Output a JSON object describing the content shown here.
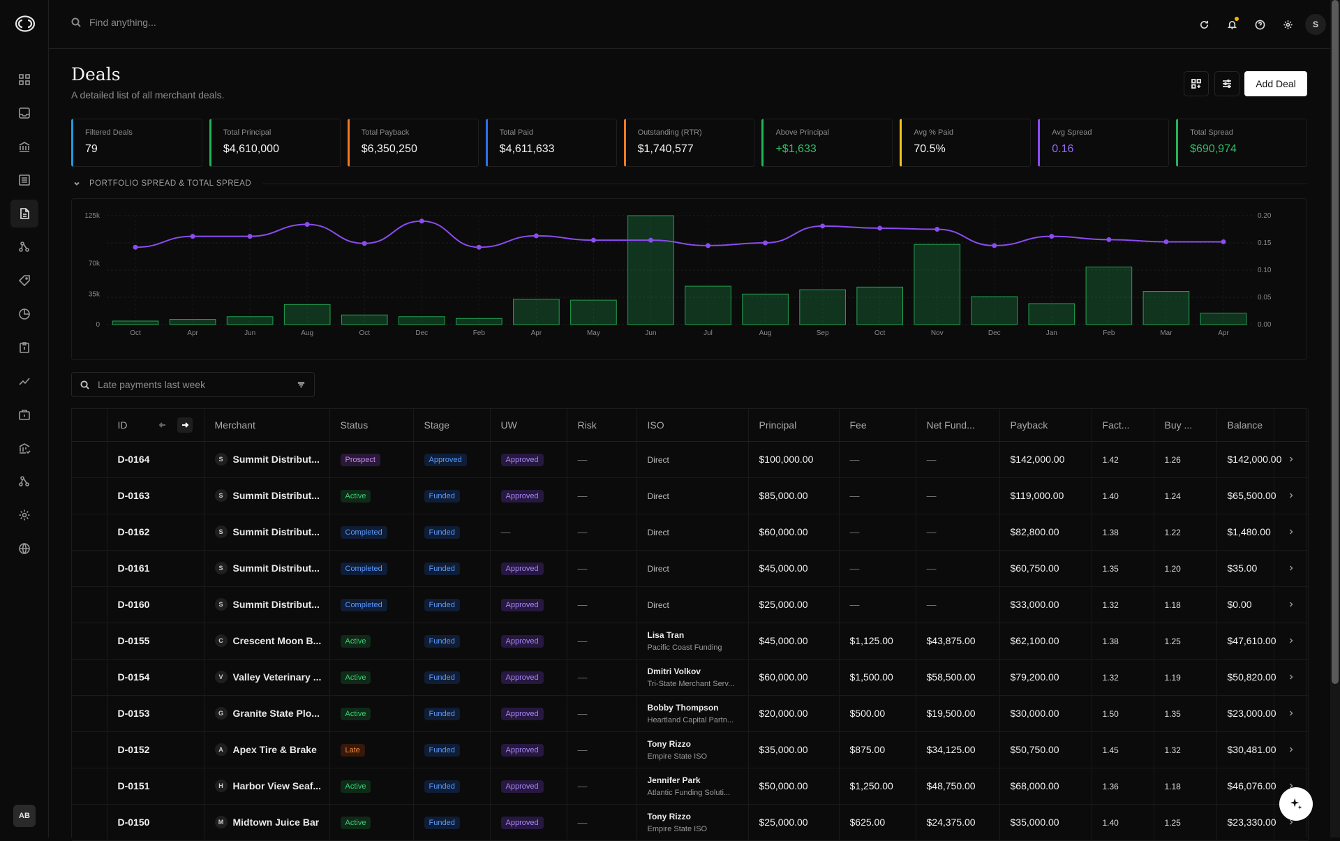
{
  "search": {
    "placeholder": "Find anything..."
  },
  "user_initial": "S",
  "bottom_avatar": "AB",
  "page": {
    "title": "Deals",
    "subtitle": "A detailed list of all merchant deals."
  },
  "add_button": "Add Deal",
  "stats": [
    {
      "label": "Filtered Deals",
      "value": "79",
      "color": "#1e9bdc",
      "value_color": "#f2f2f2"
    },
    {
      "label": "Total Principal",
      "value": "$4,610,000",
      "color": "#22b45a",
      "value_color": "#f2f2f2"
    },
    {
      "label": "Total Payback",
      "value": "$6,350,250",
      "color": "#f07a22",
      "value_color": "#f2f2f2"
    },
    {
      "label": "Total Paid",
      "value": "$4,611,633",
      "color": "#2f6ff0",
      "value_color": "#f2f2f2"
    },
    {
      "label": "Outstanding (RTR)",
      "value": "$1,740,577",
      "color": "#f07a22",
      "value_color": "#f2f2f2"
    },
    {
      "label": "Above Principal",
      "value": "+$1,633",
      "color": "#22b45a",
      "value_color": "#2fbf66"
    },
    {
      "label": "Avg % Paid",
      "value": "70.5%",
      "color": "#f2c41d",
      "value_color": "#f2f2f2"
    },
    {
      "label": "Avg Spread",
      "value": "0.16",
      "color": "#8b4cf0",
      "value_color": "#9a6af5"
    },
    {
      "label": "Total Spread",
      "value": "$690,974",
      "color": "#22b45a",
      "value_color": "#2fbf66"
    }
  ],
  "section_title": "PORTFOLIO SPREAD & TOTAL SPREAD",
  "chart_data": {
    "type": "bar",
    "categories": [
      "Oct",
      "Apr",
      "Jun",
      "Aug",
      "Oct",
      "Dec",
      "Feb",
      "Apr",
      "May",
      "Jun",
      "Jul",
      "Aug",
      "Sep",
      "Oct",
      "Nov",
      "Dec",
      "Jan",
      "Feb",
      "Mar",
      "Apr"
    ],
    "series": [
      {
        "values": [
          4000,
          6000,
          9000,
          23000,
          11000,
          9000,
          7000,
          29000,
          28000,
          125000,
          44000,
          35000,
          40000,
          43000,
          92000,
          32000,
          24000,
          66000,
          38000,
          13000
        ],
        "axis": "left",
        "type": "bar"
      },
      {
        "values": [
          0.142,
          0.162,
          0.162,
          0.184,
          0.149,
          0.19,
          0.142,
          0.163,
          0.155,
          0.155,
          0.145,
          0.15,
          0.181,
          0.177,
          0.175,
          0.145,
          0.162,
          0.156,
          0.152,
          0.152
        ],
        "axis": "right",
        "type": "line"
      }
    ],
    "y_left_ticks": [
      "125k",
      "70k",
      "35k",
      "0"
    ],
    "y_left_tick_values": [
      125000,
      70000,
      35000,
      0
    ],
    "y_right_ticks": [
      "0.20",
      "0.15",
      "0.10",
      "0.05",
      "0.00"
    ],
    "y_right_tick_values": [
      0.2,
      0.15,
      0.1,
      0.05,
      0
    ],
    "ylim_left": [
      0,
      125000
    ],
    "ylim_right": [
      0,
      0.2
    ],
    "bar_color": "#22a352",
    "line_color": "#8b4cf0"
  },
  "filter": {
    "placeholder": "Late payments last week"
  },
  "table": {
    "headers": [
      "ID",
      "Merchant",
      "Status",
      "Stage",
      "UW",
      "Risk",
      "ISO",
      "Principal",
      "Fee",
      "Net Fund...",
      "Payback",
      "Fact...",
      "Buy ...",
      "Balance"
    ],
    "rows": [
      {
        "id": "D-0164",
        "initial": "S",
        "merchant": "Summit Distribut...",
        "status": "Prospect",
        "stage": "Approved",
        "uw": "Approved",
        "risk": "—",
        "iso_name": "Direct",
        "iso_sub": "",
        "principal": "$100,000.00",
        "fee": "—",
        "net": "—",
        "payback": "$142,000.00",
        "factor": "1.42",
        "buy": "1.26",
        "balance": "$142,000.00"
      },
      {
        "id": "D-0163",
        "initial": "S",
        "merchant": "Summit Distribut...",
        "status": "Active",
        "stage": "Funded",
        "uw": "Approved",
        "risk": "—",
        "iso_name": "Direct",
        "iso_sub": "",
        "principal": "$85,000.00",
        "fee": "—",
        "net": "—",
        "payback": "$119,000.00",
        "factor": "1.40",
        "buy": "1.24",
        "balance": "$65,500.00"
      },
      {
        "id": "D-0162",
        "initial": "S",
        "merchant": "Summit Distribut...",
        "status": "Completed",
        "stage": "Funded",
        "uw": "—",
        "risk": "—",
        "iso_name": "Direct",
        "iso_sub": "",
        "principal": "$60,000.00",
        "fee": "—",
        "net": "—",
        "payback": "$82,800.00",
        "factor": "1.38",
        "buy": "1.22",
        "balance": "$1,480.00"
      },
      {
        "id": "D-0161",
        "initial": "S",
        "merchant": "Summit Distribut...",
        "status": "Completed",
        "stage": "Funded",
        "uw": "Approved",
        "risk": "—",
        "iso_name": "Direct",
        "iso_sub": "",
        "principal": "$45,000.00",
        "fee": "—",
        "net": "—",
        "payback": "$60,750.00",
        "factor": "1.35",
        "buy": "1.20",
        "balance": "$35.00"
      },
      {
        "id": "D-0160",
        "initial": "S",
        "merchant": "Summit Distribut...",
        "status": "Completed",
        "stage": "Funded",
        "uw": "Approved",
        "risk": "—",
        "iso_name": "Direct",
        "iso_sub": "",
        "principal": "$25,000.00",
        "fee": "—",
        "net": "—",
        "payback": "$33,000.00",
        "factor": "1.32",
        "buy": "1.18",
        "balance": "$0.00"
      },
      {
        "id": "D-0155",
        "initial": "C",
        "merchant": "Crescent Moon B...",
        "status": "Active",
        "stage": "Funded",
        "uw": "Approved",
        "risk": "—",
        "iso_name": "Lisa Tran",
        "iso_sub": "Pacific Coast Funding",
        "principal": "$45,000.00",
        "fee": "$1,125.00",
        "net": "$43,875.00",
        "payback": "$62,100.00",
        "factor": "1.38",
        "buy": "1.25",
        "balance": "$47,610.00"
      },
      {
        "id": "D-0154",
        "initial": "V",
        "merchant": "Valley Veterinary ...",
        "status": "Active",
        "stage": "Funded",
        "uw": "Approved",
        "risk": "—",
        "iso_name": "Dmitri Volkov",
        "iso_sub": "Tri-State Merchant Serv...",
        "principal": "$60,000.00",
        "fee": "$1,500.00",
        "net": "$58,500.00",
        "payback": "$79,200.00",
        "factor": "1.32",
        "buy": "1.19",
        "balance": "$50,820.00"
      },
      {
        "id": "D-0153",
        "initial": "G",
        "merchant": "Granite State Plo...",
        "status": "Active",
        "stage": "Funded",
        "uw": "Approved",
        "risk": "—",
        "iso_name": "Bobby Thompson",
        "iso_sub": "Heartland Capital Partn...",
        "principal": "$20,000.00",
        "fee": "$500.00",
        "net": "$19,500.00",
        "payback": "$30,000.00",
        "factor": "1.50",
        "buy": "1.35",
        "balance": "$23,000.00"
      },
      {
        "id": "D-0152",
        "initial": "A",
        "merchant": "Apex Tire & Brake",
        "status": "Late",
        "stage": "Funded",
        "uw": "Approved",
        "risk": "—",
        "iso_name": "Tony Rizzo",
        "iso_sub": "Empire State ISO",
        "principal": "$35,000.00",
        "fee": "$875.00",
        "net": "$34,125.00",
        "payback": "$50,750.00",
        "factor": "1.45",
        "buy": "1.32",
        "balance": "$30,481.00"
      },
      {
        "id": "D-0151",
        "initial": "H",
        "merchant": "Harbor View Seaf...",
        "status": "Active",
        "stage": "Funded",
        "uw": "Approved",
        "risk": "—",
        "iso_name": "Jennifer Park",
        "iso_sub": "Atlantic Funding Soluti...",
        "principal": "$50,000.00",
        "fee": "$1,250.00",
        "net": "$48,750.00",
        "payback": "$68,000.00",
        "factor": "1.36",
        "buy": "1.18",
        "balance": "$46,076.00"
      },
      {
        "id": "D-0150",
        "initial": "M",
        "merchant": "Midtown Juice Bar",
        "status": "Active",
        "stage": "Funded",
        "uw": "Approved",
        "risk": "—",
        "iso_name": "Tony Rizzo",
        "iso_sub": "Empire State ISO",
        "principal": "$25,000.00",
        "fee": "$625.00",
        "net": "$24,375.00",
        "payback": "$35,000.00",
        "factor": "1.40",
        "buy": "1.25",
        "balance": "$23,330.00"
      }
    ]
  }
}
